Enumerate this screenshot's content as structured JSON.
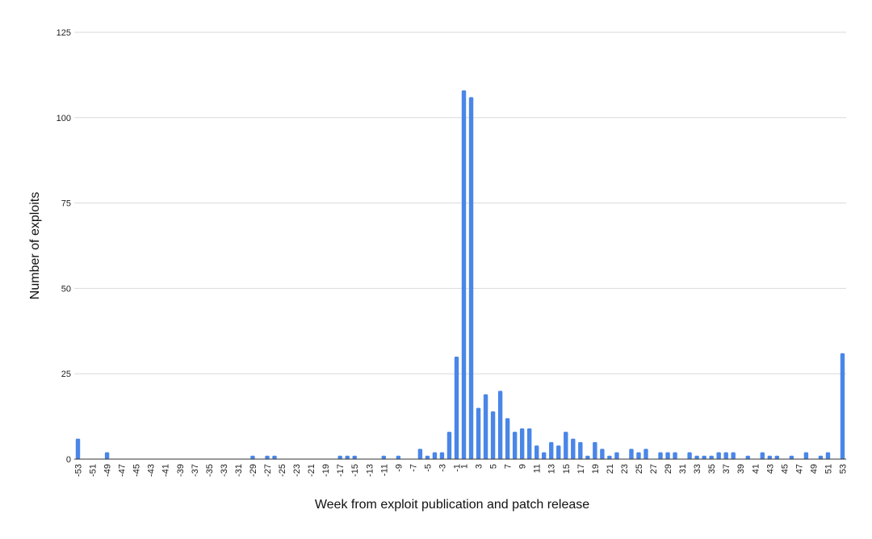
{
  "chart_data": {
    "type": "bar",
    "title": "",
    "xlabel": "Week from exploit publication and patch release",
    "ylabel": "Number of exploits",
    "ylim": [
      0,
      125
    ],
    "yticks": [
      0,
      25,
      50,
      75,
      100,
      125
    ],
    "grid": true,
    "legend": "none",
    "bar_color": "#4a86e8",
    "grid_color": "#d9d9d9",
    "xticks_shown": [
      "-53",
      "-51",
      "-49",
      "-47",
      "-45",
      "-43",
      "-41",
      "-39",
      "-37",
      "-35",
      "-33",
      "-31",
      "-29",
      "-27",
      "-25",
      "-23",
      "-21",
      "-19",
      "-17",
      "-15",
      "-13",
      "-11",
      "-9",
      "-7",
      "-5",
      "-3",
      "-1",
      "1",
      "3",
      "5",
      "7",
      "9",
      "11",
      "13",
      "15",
      "17",
      "19",
      "21",
      "23",
      "25",
      "27",
      "29",
      "31",
      "33",
      "35",
      "37",
      "39",
      "41",
      "43",
      "45",
      "47",
      "49",
      "51",
      "53"
    ],
    "categories": [
      "-53",
      "-52",
      "-51",
      "-50",
      "-49",
      "-48",
      "-47",
      "-46",
      "-45",
      "-44",
      "-43",
      "-42",
      "-41",
      "-40",
      "-39",
      "-38",
      "-37",
      "-36",
      "-35",
      "-34",
      "-33",
      "-32",
      "-31",
      "-30",
      "-29",
      "-28",
      "-27",
      "-26",
      "-25",
      "-24",
      "-23",
      "-22",
      "-21",
      "-20",
      "-19",
      "-18",
      "-17",
      "-16",
      "-15",
      "-14",
      "-13",
      "-12",
      "-11",
      "-10",
      "-9",
      "-8",
      "-7",
      "-6",
      "-5",
      "-4",
      "-3",
      "-2",
      "-1",
      "1",
      "2",
      "3",
      "4",
      "5",
      "6",
      "7",
      "8",
      "9",
      "10",
      "11",
      "12",
      "13",
      "14",
      "15",
      "16",
      "17",
      "18",
      "19",
      "20",
      "21",
      "22",
      "23",
      "24",
      "25",
      "26",
      "27",
      "28",
      "29",
      "30",
      "31",
      "32",
      "33",
      "34",
      "35",
      "36",
      "37",
      "38",
      "39",
      "40",
      "41",
      "42",
      "43",
      "44",
      "45",
      "46",
      "47",
      "48",
      "49",
      "50",
      "51",
      "52",
      "53"
    ],
    "values": [
      6,
      0,
      0,
      0,
      2,
      0,
      0,
      0,
      0,
      0,
      0,
      0,
      0,
      0,
      0,
      0,
      0,
      0,
      0,
      0,
      0,
      0,
      0,
      0,
      1,
      0,
      1,
      1,
      0,
      0,
      0,
      0,
      0,
      0,
      0,
      0,
      1,
      1,
      1,
      0,
      0,
      0,
      1,
      0,
      1,
      0,
      0,
      3,
      1,
      2,
      2,
      8,
      30,
      108,
      106,
      15,
      19,
      14,
      20,
      12,
      8,
      9,
      9,
      4,
      2,
      5,
      4,
      8,
      6,
      5,
      1,
      5,
      3,
      1,
      2,
      0,
      3,
      2,
      3,
      0,
      2,
      2,
      2,
      0,
      2,
      1,
      1,
      1,
      2,
      2,
      2,
      0,
      1,
      0,
      2,
      1,
      1,
      0,
      1,
      0,
      2,
      0,
      1,
      2,
      0,
      31
    ]
  }
}
